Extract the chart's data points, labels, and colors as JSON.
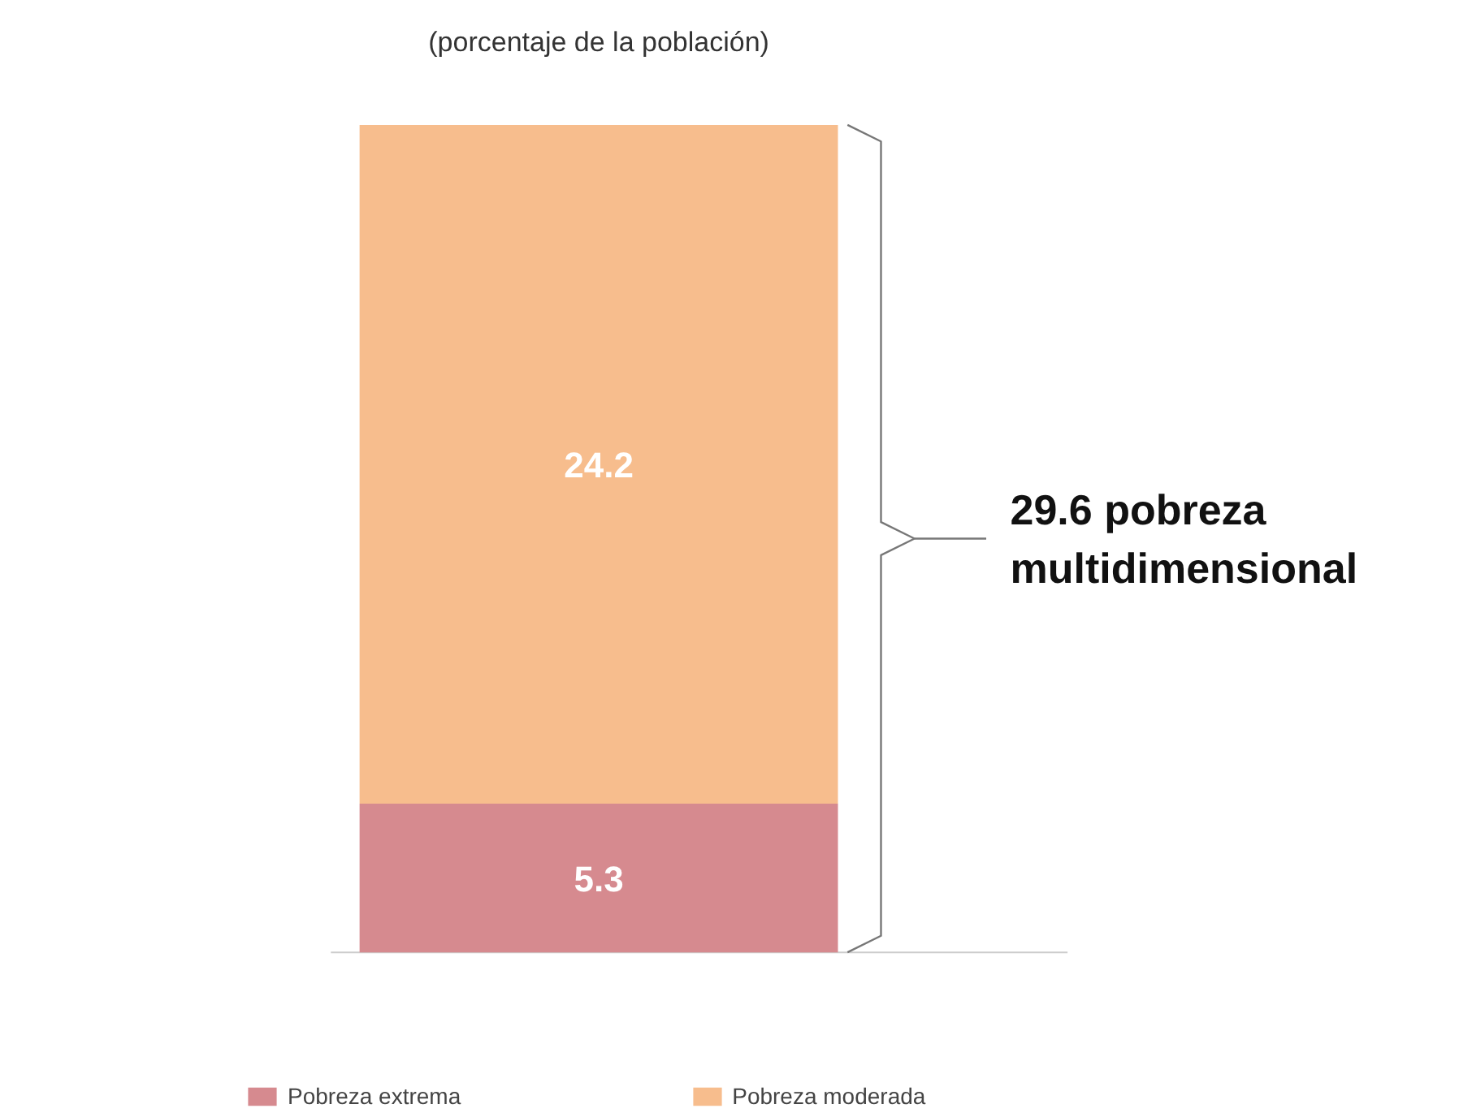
{
  "chart_data": {
    "type": "bar",
    "subtitle": "(porcentaje de la población)",
    "categories": [
      null
    ],
    "stacked": true,
    "series": [
      {
        "name": "Pobreza extrema",
        "color": "#d68a8f",
        "values": [
          5.3
        ]
      },
      {
        "name": "Pobreza moderada",
        "color": "#f7bd8d",
        "values": [
          24.2
        ]
      }
    ],
    "data_labels": true,
    "legend": "bottom",
    "annotations": [
      "29.6 pobreza multidimensional"
    ]
  }
}
